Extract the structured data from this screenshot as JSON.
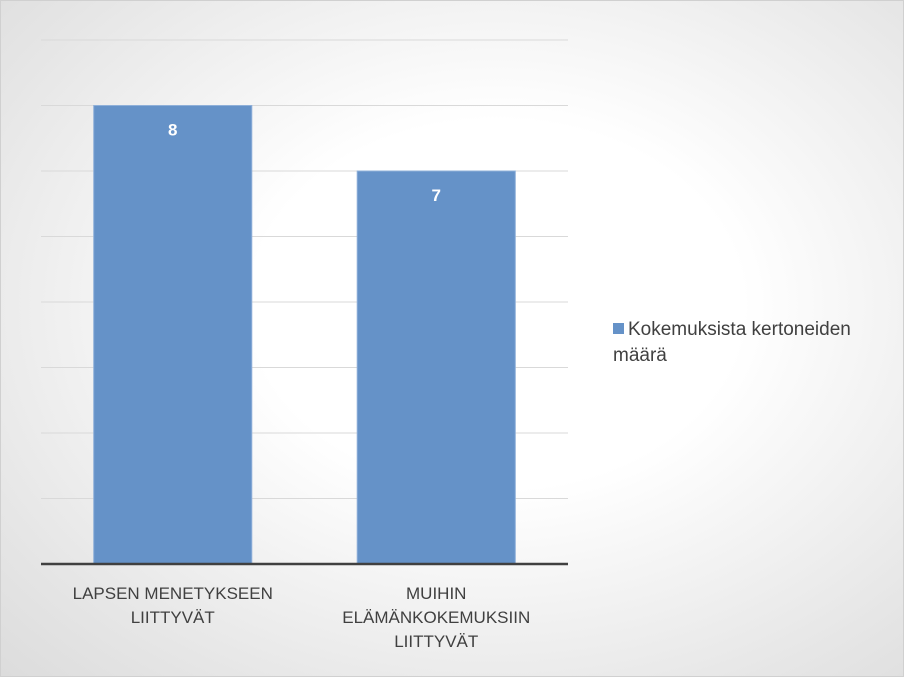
{
  "chart_data": {
    "type": "bar",
    "categories": [
      "LAPSEN MENETYKSEEN LIITTYVÄT",
      "MUIHIN ELÄMÄNKOKEMUKSIIN LIITTYVÄT"
    ],
    "series": [
      {
        "name": "Kokemuksista kertoneiden määrä",
        "color": "#6592c8",
        "values": [
          8,
          7
        ]
      }
    ],
    "ylim": [
      1,
      9
    ],
    "yticks": [
      1,
      2,
      3,
      4,
      5,
      6,
      7,
      8,
      9
    ],
    "grid": true,
    "legend": "right"
  }
}
